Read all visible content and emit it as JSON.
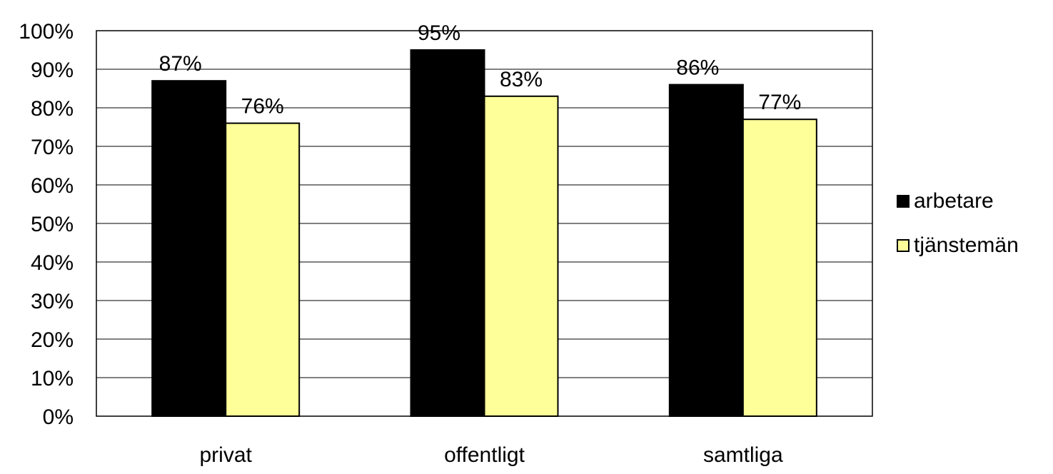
{
  "chart_data": {
    "type": "bar",
    "categories": [
      "privat",
      "offentligt",
      "samtliga"
    ],
    "series": [
      {
        "name": "arbetare",
        "values": [
          87,
          95,
          86
        ],
        "labels": [
          "87%",
          "95%",
          "86%"
        ],
        "color": "#000000"
      },
      {
        "name": "tjänstemän",
        "values": [
          76,
          83,
          77
        ],
        "labels": [
          "76%",
          "83%",
          "77%"
        ],
        "color": "#FFFF99"
      }
    ],
    "ylim": [
      0,
      100
    ],
    "yticks": [
      0,
      10,
      20,
      30,
      40,
      50,
      60,
      70,
      80,
      90,
      100
    ],
    "ytick_labels": [
      "0%",
      "10%",
      "20%",
      "30%",
      "40%",
      "50%",
      "60%",
      "70%",
      "80%",
      "90%",
      "100%"
    ],
    "grid": true,
    "legend_position": "right"
  }
}
